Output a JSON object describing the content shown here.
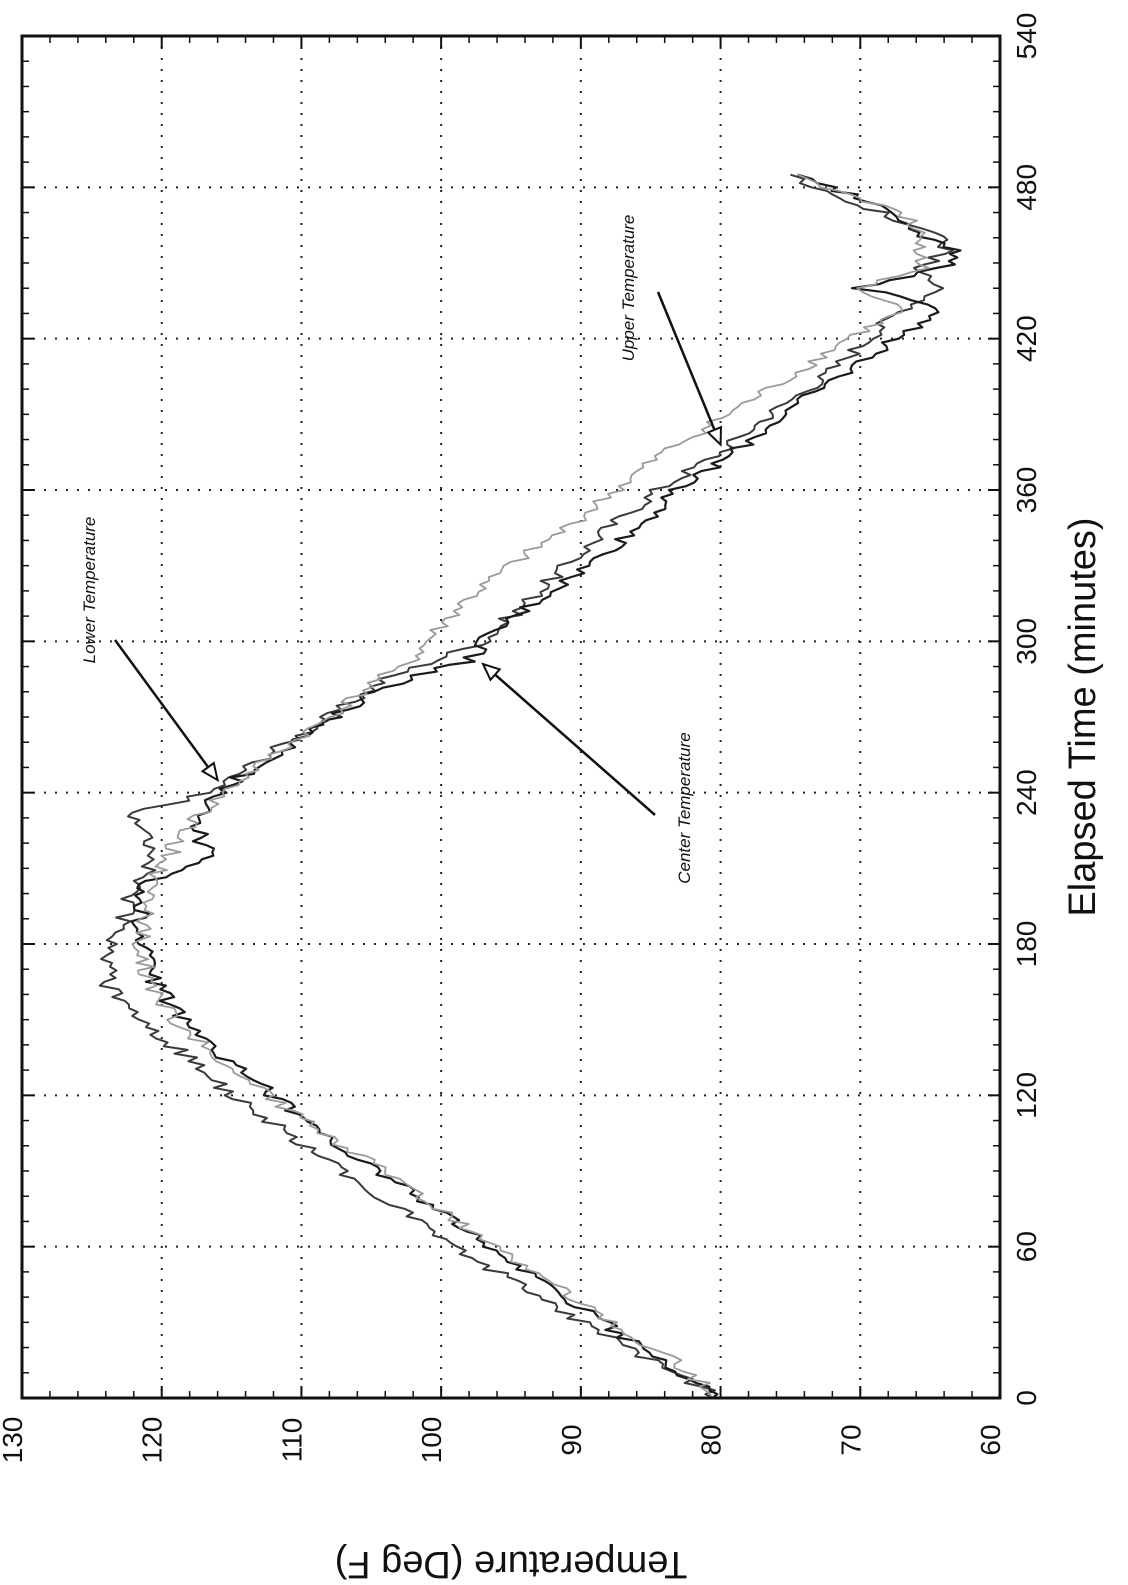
{
  "chart_data": {
    "type": "line",
    "title": "",
    "xlabel": "Elapsed Time (minutes)",
    "ylabel": "Temperature (Deg F)",
    "xlim": [
      0,
      540
    ],
    "ylim": [
      60,
      130
    ],
    "xticks": [
      0,
      60,
      120,
      180,
      240,
      300,
      360,
      420,
      480,
      540
    ],
    "yticks": [
      60,
      70,
      80,
      90,
      100,
      110,
      120,
      130
    ],
    "grid": true,
    "legend": "none",
    "colors": {
      "lower": "#3a3a3a",
      "center": "#1a1a1a",
      "upper": "#9a9a9a"
    },
    "series": [
      {
        "key": "lower",
        "x": [
          0,
          15,
          30,
          45,
          60,
          75,
          90,
          105,
          120,
          135,
          150,
          165,
          180,
          195,
          205,
          215,
          225,
          232,
          240,
          255,
          270,
          285,
          300,
          315,
          330,
          345,
          360,
          375,
          390,
          405,
          420,
          432,
          440,
          448,
          455,
          462,
          470,
          480,
          485
        ],
        "y": [
          80,
          85,
          90,
          94.5,
          99,
          103,
          107,
          111,
          115,
          118,
          122,
          124,
          123.5,
          122.5,
          121.5,
          120.5,
          121,
          122,
          116.5,
          112.5,
          108,
          104,
          97,
          94,
          91,
          88,
          84.5,
          80,
          76.5,
          72.5,
          69.5,
          67,
          64.5,
          66,
          63.5,
          65,
          68.5,
          73,
          75
        ]
      },
      {
        "key": "center",
        "x": [
          0,
          15,
          30,
          45,
          60,
          75,
          90,
          105,
          120,
          135,
          150,
          165,
          180,
          195,
          205,
          215,
          225,
          240,
          255,
          270,
          280,
          288,
          292,
          300,
          315,
          330,
          345,
          360,
          375,
          390,
          405,
          420,
          432,
          440,
          448,
          455,
          462,
          470,
          480,
          485
        ],
        "y": [
          80,
          84.5,
          88.5,
          92.5,
          96.5,
          100.5,
          104.5,
          108.5,
          112,
          115.5,
          118.5,
          120.5,
          121.5,
          121.5,
          121,
          116.5,
          117.5,
          116,
          112,
          107.5,
          105,
          101,
          98,
          97,
          93.5,
          89.5,
          86,
          83,
          79,
          75.5,
          71.5,
          67.5,
          64,
          70,
          64,
          63.5,
          66,
          68,
          72,
          74.5
        ]
      },
      {
        "key": "upper",
        "x": [
          0,
          15,
          30,
          45,
          60,
          75,
          90,
          105,
          120,
          135,
          150,
          165,
          180,
          195,
          205,
          215,
          225,
          240,
          255,
          270,
          285,
          290,
          300,
          315,
          330,
          345,
          360,
          375,
          390,
          405,
          420,
          432,
          440,
          448,
          455,
          462,
          470,
          480,
          485
        ],
        "y": [
          80,
          83.5,
          88,
          92,
          96,
          100,
          104,
          108.5,
          112.5,
          116,
          119,
          121,
          121.5,
          121,
          120.5,
          119.5,
          118.5,
          115.5,
          112,
          108,
          104.5,
          102.5,
          101,
          98.5,
          95,
          91,
          87.5,
          84,
          79.5,
          75,
          71,
          66.5,
          70,
          65.5,
          66,
          65.5,
          67,
          72.5,
          74.5
        ]
      }
    ],
    "annotations": [
      {
        "text": "Lower Temperature",
        "series": "lower",
        "x": 245,
        "y": 116
      },
      {
        "text": "Center Temperature",
        "series": "center",
        "x": 291,
        "y": 97
      },
      {
        "text": "Upper Temperature",
        "series": "upper",
        "x": 378,
        "y": 80
      }
    ]
  }
}
